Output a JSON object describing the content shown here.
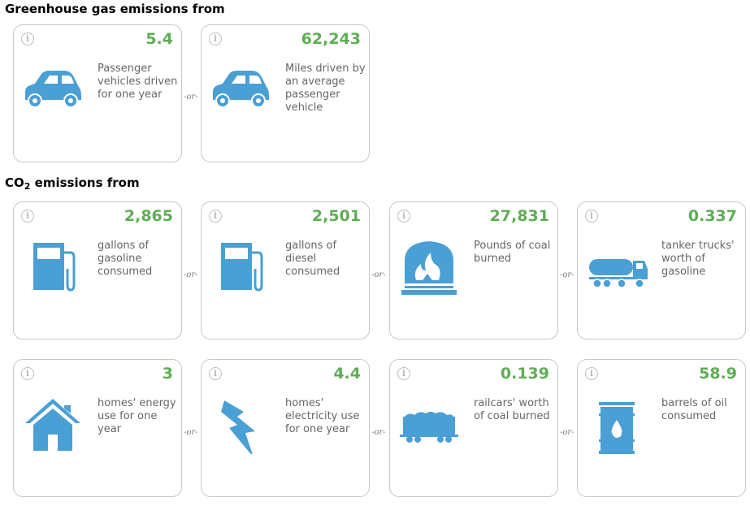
{
  "sections": {
    "ghg": {
      "title_prefix": "Greenhouse gas emissions from"
    },
    "co2": {
      "title_co": "CO",
      "title_sub": "2",
      "title_rest": " emissions from"
    }
  },
  "info_icon_glyph": "i",
  "or_label": "-or-",
  "colors": {
    "value": "#5fad56",
    "icon": "#4a9fd4",
    "border": "#c8c8c8"
  },
  "cards": [
    {
      "value": "5.4",
      "desc": "Passenger vehicles driven for one year",
      "icon": "car-icon"
    },
    {
      "value": "62,243",
      "desc": "Miles driven by an average passenger vehicle",
      "icon": "car-icon"
    },
    {
      "value": "2,865",
      "desc": "gallons of gasoline consumed",
      "icon": "gas-pump-icon"
    },
    {
      "value": "2,501",
      "desc": "gallons of diesel consumed",
      "icon": "gas-pump-icon"
    },
    {
      "value": "27,831",
      "desc": "Pounds of coal burned",
      "icon": "coal-furnace-icon"
    },
    {
      "value": "0.337",
      "desc": "tanker trucks' worth of gasoline",
      "icon": "tanker-truck-icon"
    },
    {
      "value": "3",
      "desc": "homes' energy use for one year",
      "icon": "house-icon"
    },
    {
      "value": "4.4",
      "desc": "homes' electricity use for one year",
      "icon": "lightning-icon"
    },
    {
      "value": "0.139",
      "desc": "railcars' worth of coal burned",
      "icon": "railcar-icon"
    },
    {
      "value": "58.9",
      "desc": "barrels of oil consumed",
      "icon": "oil-barrel-icon"
    }
  ]
}
